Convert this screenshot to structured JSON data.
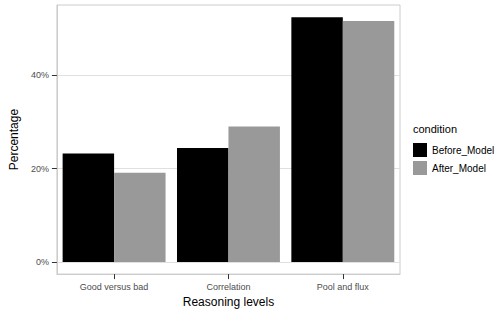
{
  "chart_data": {
    "type": "bar",
    "x_label": "Reasoning levels",
    "y_label": "Percentage",
    "legend_title": "condition",
    "categories": [
      "Good versus bad",
      "Correlation",
      "Pool and flux"
    ],
    "series": [
      {
        "name": "Before_Model",
        "color": "#000000",
        "values": [
          23.2,
          24.4,
          52.4
        ]
      },
      {
        "name": "After_Model",
        "color": "#999999",
        "values": [
          19.1,
          29.0,
          51.6
        ]
      }
    ],
    "ylim": [
      -2.6,
      55
    ],
    "yticks": [
      {
        "value": 0,
        "label": "0%"
      },
      {
        "value": 20,
        "label": "20%"
      },
      {
        "value": 40,
        "label": "40%"
      }
    ],
    "grid": true,
    "legend": "right"
  }
}
